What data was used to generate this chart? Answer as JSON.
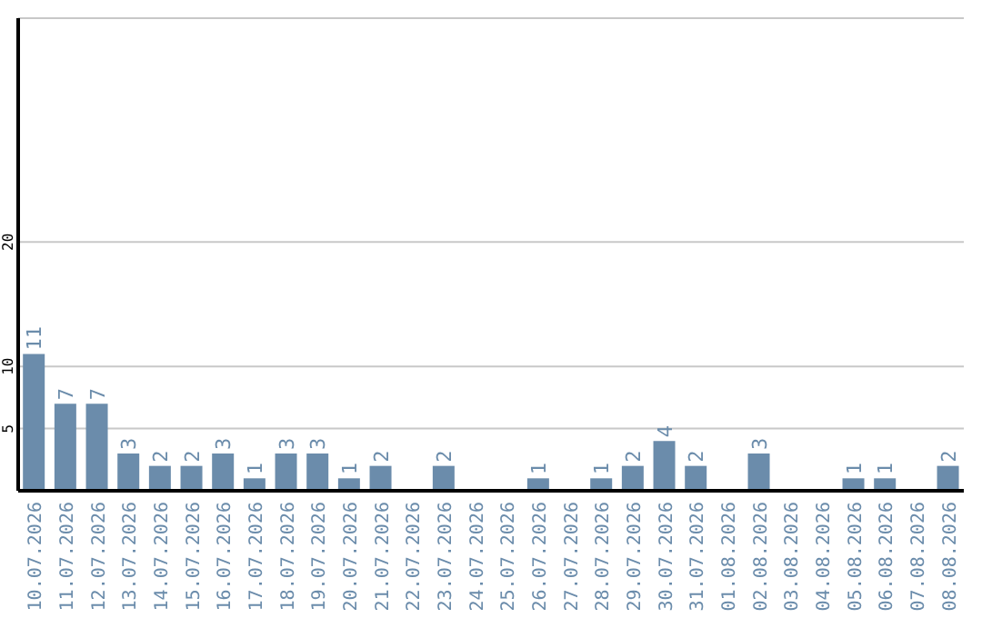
{
  "chart_data": {
    "type": "bar",
    "categories": [
      "10.07.2026",
      "11.07.2026",
      "12.07.2026",
      "13.07.2026",
      "14.07.2026",
      "15.07.2026",
      "16.07.2026",
      "17.07.2026",
      "18.07.2026",
      "19.07.2026",
      "20.07.2026",
      "21.07.2026",
      "22.07.2026",
      "23.07.2026",
      "24.07.2026",
      "25.07.2026",
      "26.07.2026",
      "27.07.2026",
      "28.07.2026",
      "29.07.2026",
      "30.07.2026",
      "31.07.2026",
      "01.08.2026",
      "02.08.2026",
      "03.08.2026",
      "04.08.2026",
      "05.08.2026",
      "06.08.2026",
      "07.08.2026",
      "08.08.2026"
    ],
    "values": [
      11,
      7,
      7,
      3,
      2,
      2,
      3,
      1,
      3,
      3,
      1,
      2,
      null,
      2,
      null,
      null,
      1,
      null,
      1,
      2,
      4,
      2,
      null,
      3,
      null,
      null,
      1,
      1,
      null,
      2
    ],
    "color": "#6b8cab",
    "ylim": [
      0,
      38
    ],
    "yticks": [
      5,
      10,
      20
    ],
    "grid": "y",
    "data_labels": true
  }
}
